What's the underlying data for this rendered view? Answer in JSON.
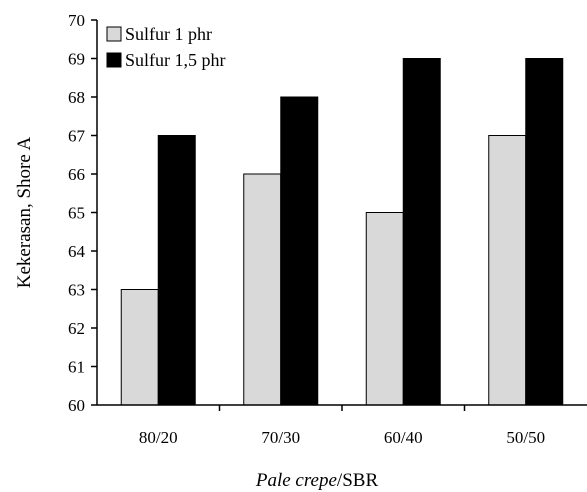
{
  "chart_data": {
    "type": "bar",
    "categories": [
      "80/20",
      "70/30",
      "60/40",
      "50/50"
    ],
    "series": [
      {
        "name": "Sulfur 1 phr",
        "values": [
          63,
          66,
          65,
          67
        ],
        "color": "#d9d9d9"
      },
      {
        "name": "Sulfur 1,5 phr",
        "values": [
          67,
          68,
          69,
          69
        ],
        "color": "#000000"
      }
    ],
    "ylim": [
      60,
      70
    ],
    "yticks": [
      60,
      61,
      62,
      63,
      64,
      65,
      66,
      67,
      68,
      69,
      70
    ],
    "xlabel_italic": "Pale crepe",
    "xlabel_rest": "/SBR",
    "ylabel": "Kekerasan, Shore A",
    "grid": false,
    "legend_position": "top-left"
  }
}
